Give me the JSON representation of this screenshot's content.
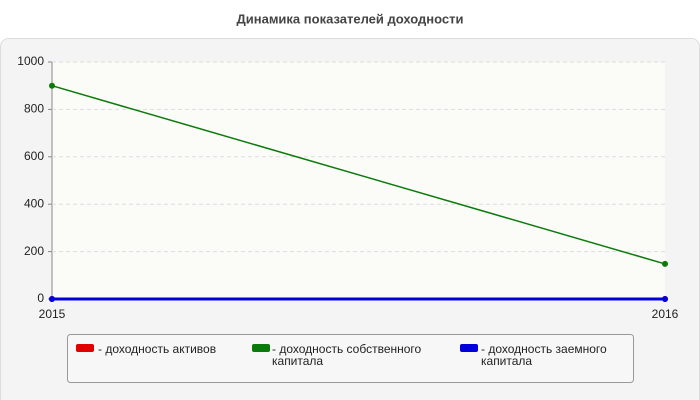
{
  "chart_data": {
    "type": "line",
    "title": "Динамика показателей доходности",
    "x": [
      2015,
      2016
    ],
    "xlim": [
      2015,
      2016
    ],
    "xticks": [
      2015,
      2016
    ],
    "ylim": [
      0,
      1000
    ],
    "yticks": [
      0,
      200,
      400,
      600,
      800,
      1000
    ],
    "grid": true,
    "series": [
      {
        "name": "- доходность активов",
        "color": "#e00000",
        "values": [
          0,
          0
        ]
      },
      {
        "name": "- доходность собственного капитала",
        "color": "#0a7a0a",
        "values": [
          900,
          148
        ]
      },
      {
        "name": "- доходность заемного капитала",
        "color": "#0000dd",
        "values": [
          0,
          0
        ]
      }
    ]
  }
}
